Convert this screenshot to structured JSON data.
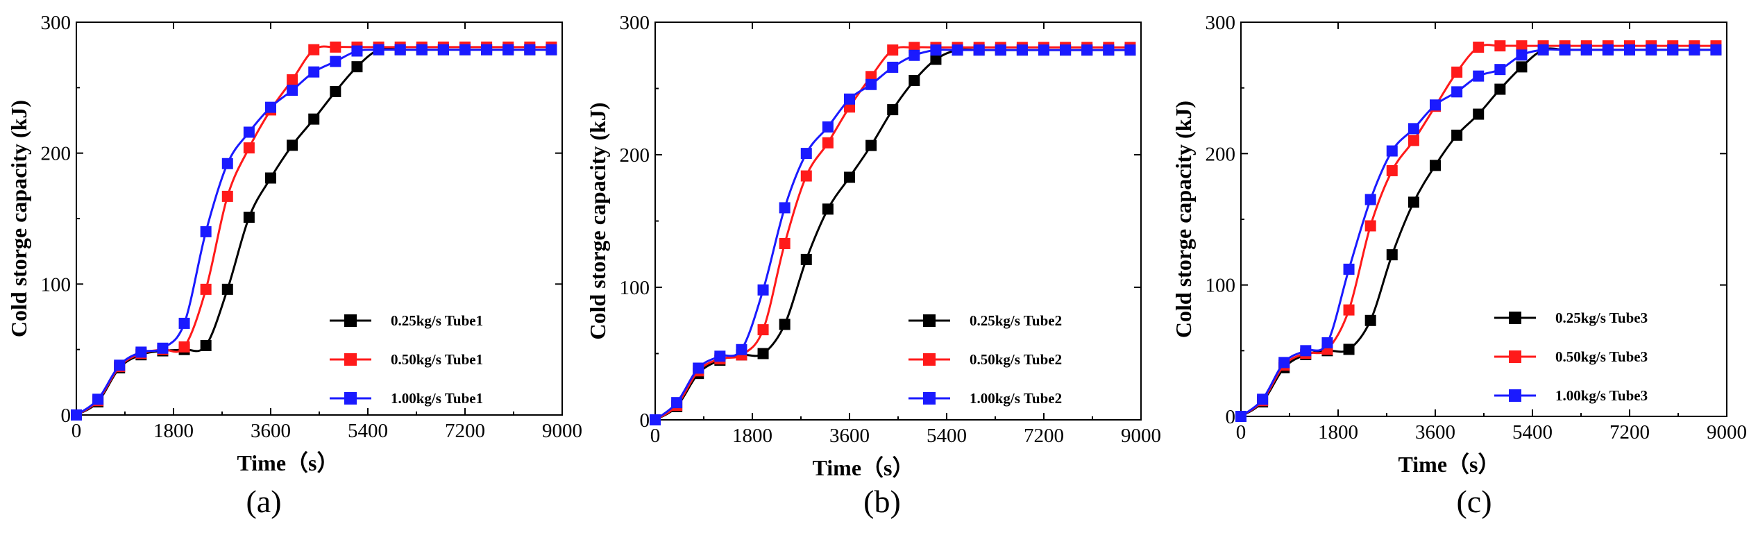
{
  "figure": {
    "panels": [
      {
        "label": "(a)",
        "bold_letter": "a"
      },
      {
        "label": "(b)",
        "bold_letter": "b"
      },
      {
        "label": "(c)",
        "bold_letter": "c"
      }
    ]
  },
  "colors": {
    "s1": "#000000",
    "s2": "#ff1a1a",
    "s3": "#1a1aff",
    "axis": "#000000"
  },
  "chart_data": [
    {
      "type": "line",
      "xlabel": "Time（s）",
      "ylabel": "Cold storge capacity (kJ)",
      "xlim": [
        0,
        9000
      ],
      "ylim": [
        0,
        300
      ],
      "xticks": [
        0,
        1800,
        3600,
        5400,
        7200,
        9000
      ],
      "yticks": [
        0,
        100,
        200,
        300
      ],
      "legend_position": "lower-right",
      "series": [
        {
          "name": "0.25kg/s Tube1",
          "x": [
            0,
            400,
            800,
            1200,
            1600,
            2000,
            2400,
            2800,
            3200,
            3600,
            4000,
            4400,
            4800,
            5200,
            5600,
            6000,
            6400,
            6800,
            7200,
            7600,
            8000,
            8400,
            8800
          ],
          "y": [
            0,
            10,
            36,
            46,
            49,
            50,
            53,
            96,
            151,
            181,
            206,
            226,
            247,
            266,
            279,
            279,
            279,
            279,
            279,
            279,
            279,
            279,
            279
          ]
        },
        {
          "name": "0.50kg/s Tube1",
          "x": [
            0,
            400,
            800,
            1200,
            1600,
            2000,
            2400,
            2800,
            3200,
            3600,
            4000,
            4400,
            4800,
            5200,
            5600,
            6000,
            6400,
            6800,
            7200,
            7600,
            8000,
            8400,
            8800
          ],
          "y": [
            0,
            11,
            37,
            47,
            50,
            52,
            96,
            167,
            204,
            233,
            256,
            279,
            281,
            281,
            281,
            281,
            281,
            281,
            281,
            281,
            281,
            281,
            281
          ]
        },
        {
          "name": "1.00kg/s Tube1",
          "x": [
            0,
            400,
            800,
            1200,
            1600,
            2000,
            2400,
            2800,
            3200,
            3600,
            4000,
            4400,
            4800,
            5200,
            5600,
            6000,
            6400,
            6800,
            7200,
            7600,
            8000,
            8400,
            8800
          ],
          "y": [
            0,
            12,
            38,
            48,
            51,
            70,
            140,
            192,
            216,
            235,
            248,
            262,
            270,
            278,
            279,
            279,
            279,
            279,
            279,
            279,
            279,
            279,
            279
          ]
        }
      ]
    },
    {
      "type": "line",
      "xlabel": "Time（s）",
      "ylabel": "Cold storge capacity (kJ)",
      "xlim": [
        0,
        9000
      ],
      "ylim": [
        0,
        300
      ],
      "xticks": [
        0,
        1800,
        3600,
        5400,
        7200,
        9000
      ],
      "yticks": [
        0,
        100,
        200,
        300
      ],
      "legend_position": "lower-right",
      "series": [
        {
          "name": "0.25kg/s Tube2",
          "x": [
            0,
            400,
            800,
            1200,
            1600,
            2000,
            2400,
            2800,
            3200,
            3600,
            4000,
            4400,
            4800,
            5200,
            5600,
            6000,
            6400,
            6800,
            7200,
            7600,
            8000,
            8400,
            8800
          ],
          "y": [
            0,
            10,
            35,
            45,
            49,
            50,
            72,
            121,
            159,
            183,
            207,
            234,
            256,
            272,
            279,
            279,
            279,
            279,
            279,
            279,
            279,
            279,
            279
          ]
        },
        {
          "name": "0.50kg/s Tube2",
          "x": [
            0,
            400,
            800,
            1200,
            1600,
            2000,
            2400,
            2800,
            3200,
            3600,
            4000,
            4400,
            4800,
            5200,
            5600,
            6000,
            6400,
            6800,
            7200,
            7600,
            8000,
            8400,
            8800
          ],
          "y": [
            0,
            11,
            37,
            46,
            49,
            68,
            133,
            184,
            209,
            236,
            259,
            279,
            281,
            281,
            281,
            281,
            281,
            281,
            281,
            281,
            281,
            281,
            281
          ]
        },
        {
          "name": "1.00kg/s Tube2",
          "x": [
            0,
            400,
            800,
            1200,
            1600,
            2000,
            2400,
            2800,
            3200,
            3600,
            4000,
            4400,
            4800,
            5200,
            5600,
            6000,
            6400,
            6800,
            7200,
            7600,
            8000,
            8400,
            8800
          ],
          "y": [
            0,
            13,
            39,
            48,
            53,
            98,
            160,
            201,
            221,
            242,
            253,
            266,
            275,
            279,
            279,
            279,
            279,
            279,
            279,
            279,
            279,
            279,
            279
          ]
        }
      ]
    },
    {
      "type": "line",
      "xlabel": "Time（s）",
      "ylabel": "Cold storge capacity (kJ)",
      "xlim": [
        0,
        9000
      ],
      "ylim": [
        0,
        300
      ],
      "xticks": [
        0,
        1800,
        3600,
        5400,
        7200,
        9000
      ],
      "yticks": [
        0,
        100,
        200,
        300
      ],
      "legend_position": "lower-right",
      "series": [
        {
          "name": "0.25kg/s Tube3",
          "x": [
            0,
            400,
            800,
            1200,
            1600,
            2000,
            2400,
            2800,
            3200,
            3600,
            4000,
            4400,
            4800,
            5200,
            5600,
            6000,
            6400,
            6800,
            7200,
            7600,
            8000,
            8400,
            8800
          ],
          "y": [
            0,
            11,
            37,
            47,
            50,
            51,
            73,
            123,
            163,
            191,
            214,
            230,
            249,
            266,
            279,
            279,
            279,
            279,
            279,
            279,
            279,
            279,
            279
          ]
        },
        {
          "name": "0.50kg/s Tube3",
          "x": [
            0,
            400,
            800,
            1200,
            1600,
            2000,
            2400,
            2800,
            3200,
            3600,
            4000,
            4400,
            4800,
            5200,
            5600,
            6000,
            6400,
            6800,
            7200,
            7600,
            8000,
            8400,
            8800
          ],
          "y": [
            0,
            12,
            39,
            48,
            51,
            81,
            145,
            187,
            210,
            236,
            262,
            281,
            282,
            282,
            282,
            282,
            282,
            282,
            282,
            282,
            282,
            282,
            282
          ]
        },
        {
          "name": "1.00kg/s Tube3",
          "x": [
            0,
            400,
            800,
            1200,
            1600,
            2000,
            2400,
            2800,
            3200,
            3600,
            4000,
            4400,
            4800,
            5200,
            5600,
            6000,
            6400,
            6800,
            7200,
            7600,
            8000,
            8400,
            8800
          ],
          "y": [
            0,
            13,
            41,
            50,
            56,
            112,
            165,
            202,
            219,
            237,
            247,
            259,
            264,
            275,
            279,
            279,
            279,
            279,
            279,
            279,
            279,
            279,
            279
          ]
        }
      ]
    }
  ]
}
